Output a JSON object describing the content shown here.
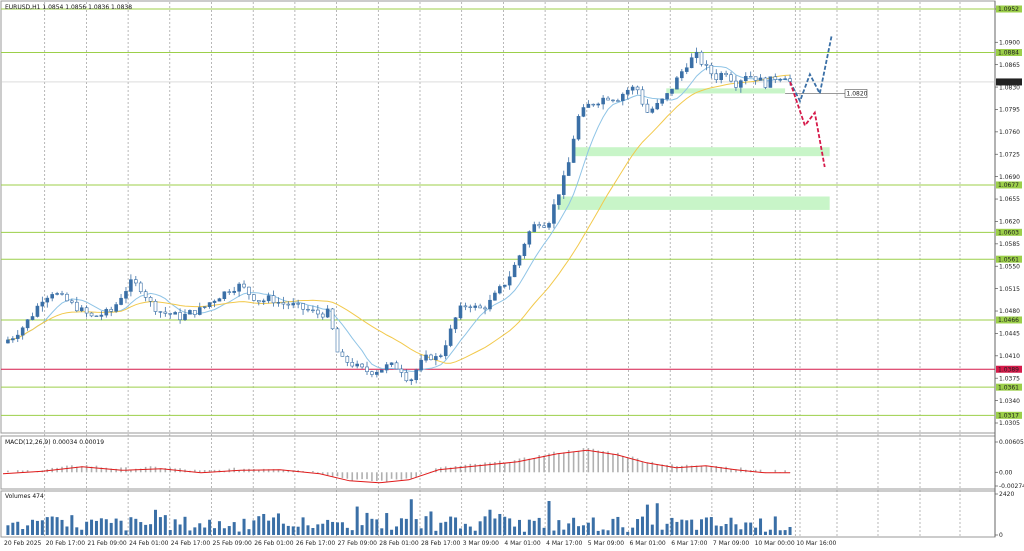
{
  "header": {
    "symbol": "EURUSD,H1",
    "ohlc": "1.0854 1.0856 1.0836 1.0838"
  },
  "colors": {
    "bull": "#3a6fa6",
    "ma_fast": "#8fc4e6",
    "ma_slow": "#f2c94c",
    "level_green": "#9ccf4a",
    "level_red": "#d61a4a",
    "zone": "#c8f5c8",
    "macd_hist": "#b0b0b0",
    "macd_signal": "#e01a1a",
    "volume": "#3a6fa6",
    "proj_up": "#3a6fa6",
    "proj_down": "#d61a4a"
  },
  "chart_data": [
    {
      "type": "candlestick",
      "title": "EURUSD,H1",
      "ylim": [
        1.0305,
        1.0952
      ],
      "yticks": [
        1.0952,
        1.09,
        1.0865,
        1.083,
        1.0795,
        1.076,
        1.0725,
        1.069,
        1.0655,
        1.062,
        1.0585,
        1.055,
        1.0515,
        1.048,
        1.0445,
        1.041,
        1.0375,
        1.034,
        1.0305
      ],
      "x_labels": [
        "20 Feb 2025",
        "20 Feb 17:00",
        "21 Feb 09:00",
        "24 Feb 01:00",
        "24 Feb 17:00",
        "25 Feb 09:00",
        "26 Feb 01:00",
        "26 Feb 17:00",
        "27 Feb 09:00",
        "28 Feb 01:00",
        "28 Feb 17:00",
        "3 Mar 09:00",
        "4 Mar 01:00",
        "4 Mar 17:00",
        "5 Mar 09:00",
        "6 Mar 01:00",
        "6 Mar 17:00",
        "7 Mar 09:00",
        "10 Mar 00:00",
        "10 Mar 16:00"
      ],
      "path": [
        [
          0,
          1.043
        ],
        [
          10,
          1.044
        ],
        [
          20,
          1.0455
        ],
        [
          30,
          1.0475
        ],
        [
          40,
          1.05
        ],
        [
          50,
          1.051
        ],
        [
          60,
          1.05
        ],
        [
          70,
          1.049
        ],
        [
          80,
          1.048
        ],
        [
          90,
          1.047
        ],
        [
          100,
          1.0475
        ],
        [
          110,
          1.048
        ],
        [
          120,
          1.0505
        ],
        [
          130,
          1.0525
        ],
        [
          140,
          1.0515
        ],
        [
          150,
          1.049
        ],
        [
          160,
          1.0478
        ],
        [
          170,
          1.0475
        ],
        [
          180,
          1.047
        ],
        [
          190,
          1.0478
        ],
        [
          200,
          1.0482
        ],
        [
          210,
          1.0495
        ],
        [
          220,
          1.0505
        ],
        [
          230,
          1.0515
        ],
        [
          240,
          1.052
        ],
        [
          250,
          1.0505
        ],
        [
          260,
          1.0495
        ],
        [
          270,
          1.05
        ],
        [
          280,
          1.0492
        ],
        [
          290,
          1.049
        ],
        [
          300,
          1.0485
        ],
        [
          310,
          1.048
        ],
        [
          320,
          1.0475
        ],
        [
          330,
          1.0478
        ],
        [
          335,
          1.043
        ],
        [
          340,
          1.0405
        ],
        [
          350,
          1.04
        ],
        [
          360,
          1.039
        ],
        [
          370,
          1.0385
        ],
        [
          380,
          1.0388
        ],
        [
          390,
          1.0395
        ],
        [
          400,
          1.0392
        ],
        [
          405,
          1.0385
        ],
        [
          410,
          1.0368
        ],
        [
          420,
          1.0395
        ],
        [
          430,
          1.041
        ],
        [
          440,
          1.0405
        ],
        [
          450,
          1.044
        ],
        [
          460,
          1.048
        ],
        [
          470,
          1.0492
        ],
        [
          480,
          1.0482
        ],
        [
          490,
          1.049
        ],
        [
          500,
          1.051
        ],
        [
          510,
          1.053
        ],
        [
          520,
          1.056
        ],
        [
          530,
          1.06
        ],
        [
          540,
          1.062
        ],
        [
          550,
          1.0615
        ],
        [
          560,
          1.066
        ],
        [
          570,
          1.07
        ],
        [
          580,
          1.078
        ],
        [
          590,
          1.08
        ],
        [
          600,
          1.0808
        ],
        [
          610,
          1.0815
        ],
        [
          620,
          1.0812
        ],
        [
          630,
          1.0825
        ],
        [
          640,
          1.083
        ],
        [
          650,
          1.079
        ],
        [
          660,
          1.08
        ],
        [
          670,
          1.0815
        ],
        [
          680,
          1.084
        ],
        [
          690,
          1.0865
        ],
        [
          700,
          1.088
        ],
        [
          710,
          1.086
        ],
        [
          720,
          1.0845
        ],
        [
          730,
          1.0855
        ],
        [
          740,
          1.0835
        ],
        [
          750,
          1.085
        ],
        [
          760,
          1.0845
        ],
        [
          770,
          1.0835
        ],
        [
          780,
          1.0845
        ],
        [
          790,
          1.0848
        ],
        [
          795,
          1.0838
        ]
      ],
      "levels": {
        "green": [
          1.0952,
          1.0884,
          1.0677,
          1.0603,
          1.0561,
          1.0466,
          1.0361,
          1.0317
        ],
        "red": [
          1.0389
        ],
        "current": 1.0838,
        "marked": 1.082
      },
      "level_labels": [
        "1.0952",
        "1.0884",
        "1.0677",
        "1.0603",
        "1.0561",
        "1.0466",
        "1.0361",
        "1.0317",
        "1.0389",
        "1.0838",
        "1.0820"
      ],
      "zones": [
        {
          "y_top": 1.0828,
          "y_bottom": 1.082,
          "x_start": 670,
          "x_end": 790
        },
        {
          "y_top": 1.0736,
          "y_bottom": 1.0722,
          "x_start": 575,
          "x_end": 835
        },
        {
          "y_top": 1.0659,
          "y_bottom": 1.0638,
          "x_start": 560,
          "x_end": 835
        }
      ],
      "projection_up": [
        [
          795,
          1.0838
        ],
        [
          805,
          1.0808
        ],
        [
          815,
          1.085
        ],
        [
          825,
          1.082
        ],
        [
          837,
          1.091
        ]
      ],
      "projection_down": [
        [
          795,
          1.0838
        ],
        [
          810,
          1.077
        ],
        [
          820,
          1.079
        ],
        [
          830,
          1.0705
        ]
      ]
    },
    {
      "type": "bar",
      "title": "MACD(12,26,9) 0.00034 0.00019",
      "ylim": [
        -0.00274,
        0.00605
      ],
      "yticks": [
        0.00605,
        0.0,
        -0.00274
      ],
      "signal_path": [
        [
          0,
          0.0
        ],
        [
          40,
          0.0005
        ],
        [
          80,
          0.0014
        ],
        [
          120,
          0.0007
        ],
        [
          160,
          0.001
        ],
        [
          200,
          0.0002
        ],
        [
          240,
          0.0007
        ],
        [
          280,
          0.0008
        ],
        [
          320,
          0.0
        ],
        [
          350,
          -0.0014
        ],
        [
          380,
          -0.0018
        ],
        [
          410,
          -0.0012
        ],
        [
          440,
          0.0008
        ],
        [
          480,
          0.0016
        ],
        [
          520,
          0.0024
        ],
        [
          560,
          0.004
        ],
        [
          590,
          0.0047
        ],
        [
          620,
          0.0038
        ],
        [
          650,
          0.0022
        ],
        [
          680,
          0.0012
        ],
        [
          710,
          0.0016
        ],
        [
          740,
          0.0008
        ],
        [
          770,
          0.0002
        ],
        [
          795,
          0.0002
        ]
      ]
    },
    {
      "type": "bar",
      "title": "Volumes 474",
      "ylim": [
        0,
        2420
      ],
      "yticks": [
        2420,
        0
      ]
    }
  ]
}
